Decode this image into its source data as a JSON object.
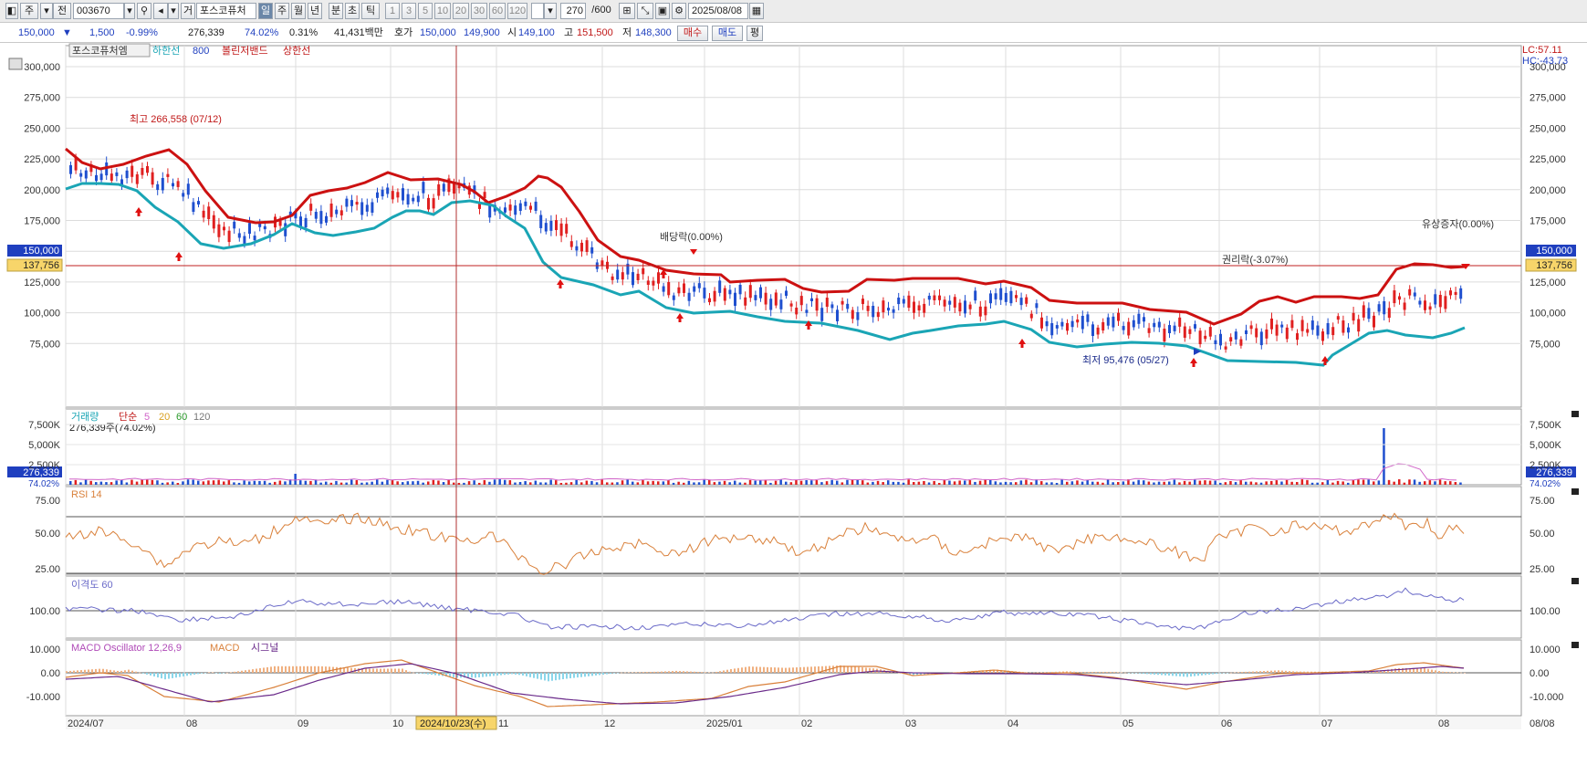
{
  "toolbar": {
    "type_buttons": [
      "주",
      "전"
    ],
    "stock_code": "003670",
    "stock_tag": "거",
    "stock_name": "포스코퓨처",
    "periods": [
      "일",
      "주",
      "월",
      "년",
      "분",
      "초",
      "틱"
    ],
    "selected_period": "일",
    "minute_options": [
      "1",
      "3",
      "5",
      "10",
      "20",
      "30",
      "60",
      "120"
    ],
    "count": "270",
    "count_total": "/600",
    "date": "2025/08/08"
  },
  "quote": {
    "price": "150,000",
    "change_arrow": "▼",
    "change": "1,500",
    "change_pct": "-0.99%",
    "volume": "276,339",
    "volume_ratio": "74.02%",
    "turnover": "0.31%",
    "amount": "41,431백만",
    "hoga_label": "호가",
    "ask": "150,000",
    "bid": "149,900",
    "open_label": "시",
    "open": "149,100",
    "high_label": "고",
    "high": "151,500",
    "low_label": "저",
    "low": "148,300",
    "buy_label": "매수",
    "sell_label": "매도",
    "eval_label": "평"
  },
  "price_panel": {
    "legend": [
      "포스코퓨처엠",
      "하한선",
      "800",
      "볼린저밴드",
      "상한선"
    ],
    "lc": "LC:57.11",
    "hc": "HC:-43.73",
    "y_ticks": [
      "300,000",
      "275,000",
      "250,000",
      "225,000",
      "200,000",
      "175,000",
      "150,000",
      "125,000",
      "100,000",
      "75,000"
    ],
    "current_price": "150,000",
    "crosshair_price": "137,756",
    "annotations": {
      "high": "최고 266,558 (07/12)",
      "low": "최저 95,476 (05/27)",
      "dividend": "배당락(0.00%)",
      "rights": "권리락(-3.07%)",
      "capital": "유상증자(0.00%)"
    }
  },
  "volume_panel": {
    "legend": [
      "거래량",
      "단순",
      "5",
      "20",
      "60",
      "120"
    ],
    "sub": "276,339주(74.02%)",
    "y_ticks": [
      "7,500K",
      "5,000K",
      "2,500K"
    ],
    "current": "276,339",
    "ratio": "74.02%"
  },
  "rsi_panel": {
    "legend": "RSI 14",
    "y_ticks": [
      "75.00",
      "50.00",
      "25.00"
    ]
  },
  "disparity_panel": {
    "legend": "이격도 60",
    "y_ticks": [
      "100.00"
    ]
  },
  "macd_panel": {
    "legend": [
      "MACD Oscillator 12,26,9",
      "MACD",
      "시그널"
    ],
    "y_ticks": [
      "10.000",
      "0.00",
      "-10.000"
    ]
  },
  "x_axis": {
    "labels": [
      "2024/07",
      "08",
      "09",
      "10",
      "11",
      "12",
      "2025/01",
      "02",
      "03",
      "04",
      "05",
      "06",
      "07",
      "08"
    ],
    "crosshair_date": "2024/10/23(수)",
    "right_label": "08/08"
  },
  "colors": {
    "bollinger_upper": "#cc1111",
    "bollinger_lower": "#1aa5b5",
    "candle_up": "#e02020",
    "candle_down": "#1f4fcf",
    "crosshair": "#b03030",
    "rsi_line": "#d9803a",
    "disparity_line": "#6a6ac8",
    "macd_line": "#d9803a",
    "signal_line": "#6a2a8a"
  }
}
